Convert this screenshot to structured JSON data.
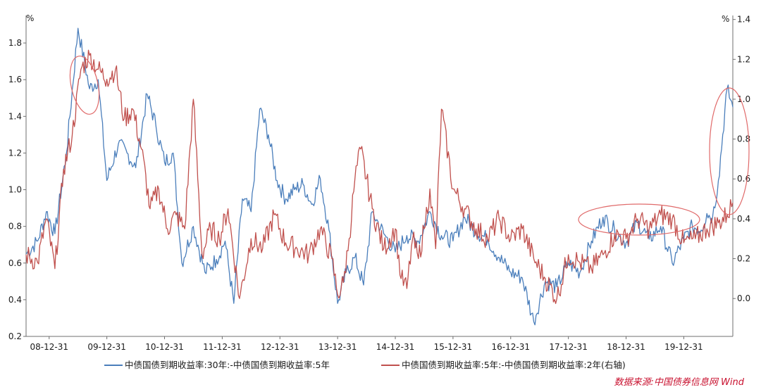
{
  "chart_data": {
    "type": "line",
    "title": "",
    "left_axis": {
      "unit": "%",
      "ylim": [
        0.2,
        1.95
      ],
      "ticks": [
        0.2,
        0.4,
        0.6,
        0.8,
        1.0,
        1.2,
        1.4,
        1.6,
        1.8
      ],
      "tick_labels": [
        "0.2",
        "0.4",
        "0.6",
        "0.8",
        "1.0",
        "1.2",
        "1.4",
        "1.6",
        "1.8"
      ]
    },
    "right_axis": {
      "unit": "%",
      "ylim": [
        -0.19,
        1.42
      ],
      "ticks": [
        0.0,
        0.2,
        0.4,
        0.6,
        0.8,
        1.0,
        1.2,
        1.4
      ],
      "tick_labels": [
        "0.0",
        "0.2",
        "0.4",
        "0.6",
        "0.8",
        "1.0",
        "1.2",
        "1.4"
      ]
    },
    "x_range": [
      2007.6,
      2019.85
    ],
    "x_ticks": [
      2008.0,
      2009.0,
      2010.0,
      2011.0,
      2012.0,
      2013.0,
      2014.0,
      2015.0,
      2016.0,
      2017.0,
      2018.0,
      2019.0
    ],
    "x_tick_labels": [
      "08-12-31",
      "09-12-31",
      "10-12-31",
      "11-12-31",
      "12-12-31",
      "13-12-31",
      "14-12-31",
      "15-12-31",
      "16-12-31",
      "17-12-31",
      "18-12-31",
      "19-12-31"
    ],
    "series": [
      {
        "name": "中债国债到期收益率:30年:-中债国债到期收益率:5年",
        "axis": "left",
        "color": "#4a7ebb",
        "x": [
          2007.6,
          2007.8,
          2007.95,
          2008.1,
          2008.3,
          2008.5,
          2008.7,
          2008.85,
          2009.0,
          2009.2,
          2009.35,
          2009.5,
          2009.7,
          2009.85,
          2010.0,
          2010.15,
          2010.3,
          2010.5,
          2010.7,
          2010.9,
          2011.05,
          2011.2,
          2011.35,
          2011.5,
          2011.65,
          2011.8,
          2011.95,
          2012.1,
          2012.25,
          2012.4,
          2012.55,
          2012.7,
          2012.85,
          2013.0,
          2013.15,
          2013.3,
          2013.45,
          2013.6,
          2013.8,
          2014.0,
          2014.2,
          2014.4,
          2014.6,
          2014.8,
          2015.0,
          2015.2,
          2015.4,
          2015.6,
          2015.8,
          2016.0,
          2016.2,
          2016.4,
          2016.6,
          2016.8,
          2017.0,
          2017.2,
          2017.4,
          2017.6,
          2017.8,
          2018.0,
          2018.2,
          2018.4,
          2018.6,
          2018.8,
          2019.0,
          2019.15,
          2019.3,
          2019.4,
          2019.5,
          2019.6,
          2019.75,
          2019.85
        ],
        "values": [
          0.65,
          0.72,
          0.88,
          0.76,
          1.2,
          1.88,
          1.55,
          1.6,
          1.05,
          1.25,
          1.2,
          1.12,
          1.52,
          1.35,
          1.15,
          1.2,
          0.6,
          0.8,
          0.55,
          0.62,
          0.72,
          0.38,
          0.95,
          0.88,
          1.44,
          1.3,
          1.05,
          0.95,
          1.0,
          1.03,
          0.92,
          1.06,
          0.78,
          0.38,
          0.55,
          0.63,
          0.48,
          0.88,
          0.76,
          0.66,
          0.75,
          0.72,
          0.88,
          0.75,
          0.72,
          0.85,
          0.77,
          0.73,
          0.63,
          0.55,
          0.52,
          0.28,
          0.5,
          0.47,
          0.6,
          0.55,
          0.72,
          0.85,
          0.78,
          0.71,
          0.82,
          0.73,
          0.8,
          0.6,
          0.73,
          0.8,
          0.78,
          0.87,
          0.85,
          1.05,
          1.55,
          1.45
        ]
      },
      {
        "name": "中债国债到期收益率:5年:-中债国债到期收益率:2年(右轴)",
        "axis": "right",
        "color": "#c0504d",
        "x": [
          2007.6,
          2007.8,
          2007.95,
          2008.1,
          2008.25,
          2008.4,
          2008.55,
          2008.7,
          2008.85,
          2009.0,
          2009.15,
          2009.3,
          2009.45,
          2009.6,
          2009.75,
          2009.9,
          2010.05,
          2010.2,
          2010.35,
          2010.5,
          2010.65,
          2010.8,
          2010.95,
          2011.1,
          2011.3,
          2011.5,
          2011.7,
          2011.9,
          2012.1,
          2012.3,
          2012.5,
          2012.7,
          2012.9,
          2013.0,
          2013.1,
          2013.2,
          2013.3,
          2013.4,
          2013.6,
          2013.8,
          2014.0,
          2014.1,
          2014.2,
          2014.3,
          2014.4,
          2014.5,
          2014.6,
          2014.7,
          2014.8,
          2015.0,
          2015.2,
          2015.4,
          2015.6,
          2015.8,
          2016.0,
          2016.2,
          2016.4,
          2016.6,
          2016.8,
          2017.0,
          2017.2,
          2017.4,
          2017.6,
          2017.8,
          2018.0,
          2018.2,
          2018.4,
          2018.6,
          2018.8,
          2019.0,
          2019.2,
          2019.4,
          2019.6,
          2019.75,
          2019.85
        ],
        "values": [
          0.22,
          0.18,
          0.4,
          0.15,
          0.65,
          0.82,
          1.15,
          1.22,
          1.15,
          1.1,
          1.15,
          0.9,
          0.95,
          0.75,
          0.45,
          0.55,
          0.35,
          0.42,
          0.35,
          1.0,
          0.22,
          0.35,
          0.3,
          0.45,
          0.0,
          0.3,
          0.25,
          0.42,
          0.28,
          0.25,
          0.22,
          0.35,
          0.2,
          0.02,
          0.08,
          0.3,
          0.6,
          0.75,
          0.45,
          0.25,
          0.35,
          0.1,
          0.05,
          0.3,
          0.2,
          0.35,
          0.55,
          0.25,
          0.95,
          0.55,
          0.45,
          0.35,
          0.3,
          0.4,
          0.3,
          0.35,
          0.2,
          0.1,
          0.0,
          0.22,
          0.18,
          0.15,
          0.22,
          0.32,
          0.3,
          0.4,
          0.35,
          0.42,
          0.4,
          0.28,
          0.3,
          0.35,
          0.38,
          0.42,
          0.48
        ]
      }
    ],
    "annotations": [
      "ellipse-2009",
      "ellipse-2018",
      "ellipse-2019-end"
    ]
  },
  "legend": {
    "item1": "中债国债到期收益率:30年:-中债国债到期收益率:5年",
    "item2": "中债国债到期收益率:5年:-中债国债到期收益率:2年(右轴)"
  },
  "source": "数据来源:中国债券信息网 Wind"
}
